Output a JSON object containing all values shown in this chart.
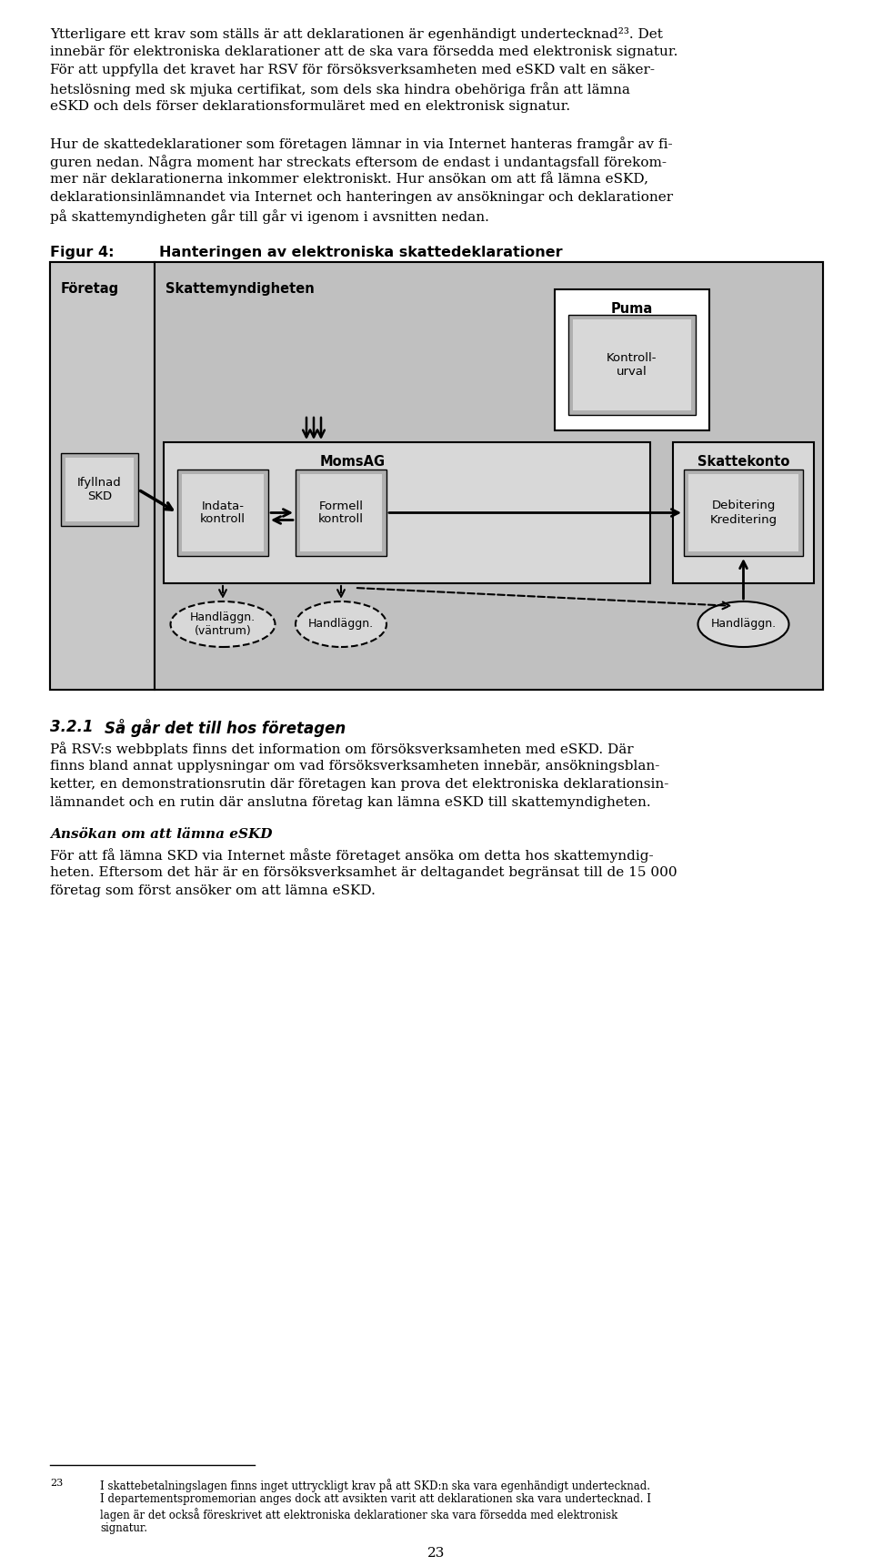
{
  "page_bg": "#ffffff",
  "text_color": "#000000",
  "para1": "Ytterligare ett krav som ställs är att deklarationen är egenhändigt undertecknad²³. Det\ninnebär för elektroniska deklarationer att de ska vara försedda med elektronisk signatur.\nFör att uppfylla det kravet har RSV för försöksverksamheten med eSKD valt en säker-\nhetslösning med sk mjuka certifikat, som dels ska hindra obehöriga från att lämna\neSKD och dels förser deklarationsformuläret med en elektronisk signatur.",
  "para2": "Hur de skattedeklarationer som företagen lämnar in via Internet hanteras framgår av fi-\nguren nedan. Några moment har streckats eftersom de endast i undantagsfall förekom-\nmer när deklarationerna inkommer elektroniskt. Hur ansökan om att få lämna eSKD,\ndeklarationsinlämnandet via Internet och hanteringen av ansökningar och deklarationer\npå skattemyndigheten går till går vi igenom i avsnitten nedan.",
  "fig_label": "Figur 4:",
  "fig_title": "Hanteringen av elektroniska skattedeklarationer",
  "section_title": "3.2.1    Så går det till hos företagen",
  "para3": "På RSV:s webbplats finns det information om försöksverksamheten med eSKD. Där\nfinns bland annat upplysningar om vad försöksverksamheten innebär, ansökningsblan-\nketter, en demonstrationsrutin där företagen kan prova det elektroniska deklarationsin-\nlämnandet och en rutin där anslutna företag kan lämna eSKD till skattemyndigheten.",
  "subsec_title": "Ansökan om att lämna eSKD",
  "para4": "För att få lämna SKD via Internet måste företaget ansöka om detta hos skattemyndig-\nheten. Eftersom det här är en försöksverksamhet är deltagandet begränsat till de 15 000\nföretag som först ansöker om att lämna eSKD.",
  "footnote_line": "────────────────────────────────",
  "footnote_num": "23",
  "footnote_text": "I skattebetalningslagen finns inget uttryckligt krav på att SKD:n ska vara egenhändigt undertecknad.\nI departementspromemorian anges dock att avsikten varit att deklarationen ska vara undertecknad. I\nlagen är det också föreskrivet att elektroniska deklarationer ska vara försedda med elektronisk\nsignatur.",
  "page_num": "23",
  "diagram_bg": "#c0c0c0",
  "diagram_inner_bg": "#d0d0d0",
  "box_bg_light": "#e8e8e8",
  "box_bg_dark": "#a0a0a0",
  "box_border": "#000000"
}
